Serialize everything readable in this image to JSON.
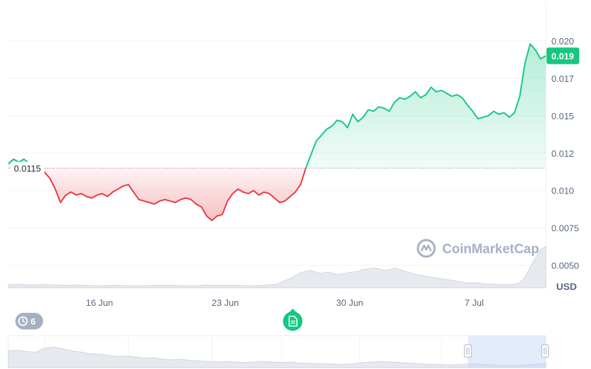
{
  "chart_data": {
    "type": "line",
    "y_ticks": [
      "0.020",
      "0.017",
      "0.015",
      "0.012",
      "0.010",
      "0.0075",
      "0.0050"
    ],
    "y_tick_values": [
      0.02,
      0.0175,
      0.015,
      0.0125,
      0.01,
      0.0075,
      0.005
    ],
    "x_ticks": [
      "16 Jun",
      "23 Jun",
      "30 Jun",
      "7 Jul"
    ],
    "ylim": [
      0.0035,
      0.0225
    ],
    "reference_price": 0.0115,
    "reference_label": "0.0115",
    "current_price": 0.019,
    "current_price_label": "0.019",
    "unit": "USD",
    "colors": {
      "up": "#16c784",
      "down": "#ea3943",
      "badge": "#16c784"
    },
    "series": [
      {
        "values": [
          0.0118,
          0.0121,
          0.0119,
          0.0121,
          0.0118,
          0.0117,
          0.0116,
          0.0112,
          0.0108,
          0.0101,
          0.0092,
          0.0097,
          0.0099,
          0.0097,
          0.0098,
          0.0096,
          0.0095,
          0.0097,
          0.0098,
          0.0096,
          0.0099,
          0.0101,
          0.0103,
          0.0104,
          0.0099,
          0.0094,
          0.0093,
          0.0092,
          0.0091,
          0.0093,
          0.0094,
          0.0093,
          0.0092,
          0.0094,
          0.0095,
          0.0094,
          0.0091,
          0.0089,
          0.0083,
          0.008,
          0.0083,
          0.0084,
          0.0093,
          0.0098,
          0.0101,
          0.0099,
          0.0098,
          0.01,
          0.0097,
          0.0099,
          0.0098,
          0.0095,
          0.0092,
          0.0093,
          0.0096,
          0.0099,
          0.0104,
          0.0115,
          0.0124,
          0.0133,
          0.0137,
          0.0141,
          0.0143,
          0.0147,
          0.0146,
          0.0142,
          0.0151,
          0.0146,
          0.0149,
          0.0154,
          0.0153,
          0.0156,
          0.0155,
          0.0153,
          0.0159,
          0.0162,
          0.0161,
          0.0163,
          0.0166,
          0.0162,
          0.0164,
          0.0169,
          0.0166,
          0.0167,
          0.0165,
          0.0163,
          0.0164,
          0.0162,
          0.0157,
          0.0153,
          0.0148,
          0.0149,
          0.015,
          0.0153,
          0.0151,
          0.0152,
          0.0149,
          0.0152,
          0.0163,
          0.0185,
          0.0198,
          0.0194,
          0.0188,
          0.019
        ]
      }
    ],
    "volume": [
      0.08,
      0.08,
      0.09,
      0.08,
      0.07,
      0.07,
      0.08,
      0.08,
      0.07,
      0.07,
      0.06,
      0.06,
      0.06,
      0.07,
      0.06,
      0.06,
      0.06,
      0.05,
      0.05,
      0.06,
      0.06,
      0.06,
      0.06,
      0.05,
      0.05,
      0.05,
      0.05,
      0.06,
      0.06,
      0.06,
      0.06,
      0.06,
      0.06,
      0.05,
      0.05,
      0.05,
      0.05,
      0.06,
      0.07,
      0.06,
      0.06,
      0.06,
      0.06,
      0.06,
      0.06,
      0.06,
      0.05,
      0.05,
      0.06,
      0.06,
      0.07,
      0.08,
      0.12,
      0.18,
      0.22,
      0.3,
      0.36,
      0.4,
      0.42,
      0.38,
      0.35,
      0.38,
      0.36,
      0.32,
      0.34,
      0.36,
      0.38,
      0.4,
      0.44,
      0.46,
      0.48,
      0.46,
      0.42,
      0.44,
      0.48,
      0.44,
      0.4,
      0.36,
      0.33,
      0.3,
      0.28,
      0.26,
      0.24,
      0.22,
      0.2,
      0.18,
      0.16,
      0.14,
      0.12,
      0.12,
      0.12,
      0.1,
      0.09,
      0.09,
      0.08,
      0.08,
      0.08,
      0.09,
      0.12,
      0.25,
      0.5,
      0.72,
      0.92,
      1.0
    ]
  },
  "watermark": "CoinMarketCap",
  "history_badge": {
    "icon": "history-icon",
    "count": "6"
  },
  "document_marker": {
    "icon": "document-icon"
  },
  "navigator": {
    "handle_icon": "pause-icon"
  }
}
